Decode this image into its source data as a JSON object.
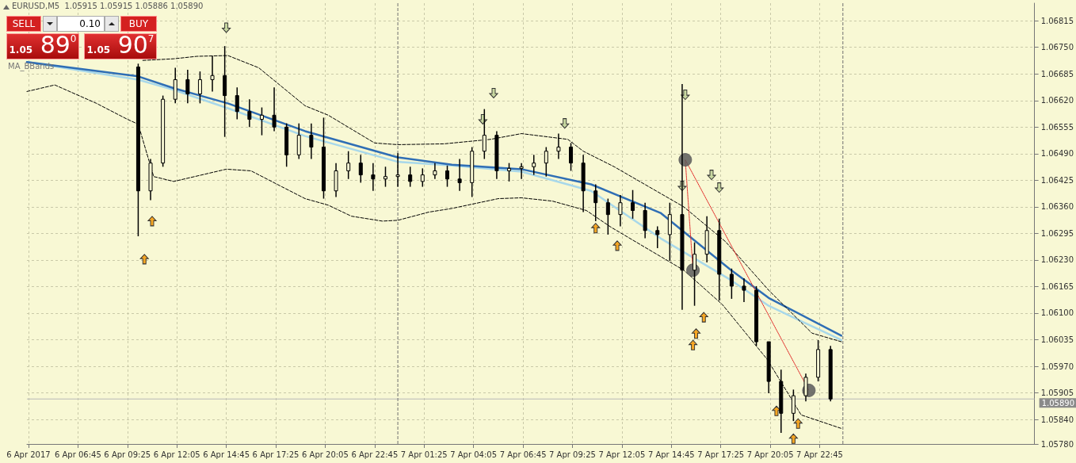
{
  "chart_data": {
    "type": "candlestick",
    "title": "EURUSD,M5  1.05915 1.05915 1.05886 1.05890",
    "subtitle": "MA_BBands",
    "annotations": [
      "SELL",
      "0.10",
      "BUY",
      "1.05 89$^{0}$",
      "1.05 90$^{7}$"
    ],
    "color": "#000000",
    "x": [
      "2017-04-06T10:00",
      "2017-04-06T10:40",
      "2017-04-06T11:20",
      "2017-04-06T12:00",
      "2017-04-06T12:40",
      "2017-04-06T13:20",
      "2017-04-06T14:00",
      "2017-04-06T14:40",
      "2017-04-06T15:20",
      "2017-04-06T16:00",
      "2017-04-06T16:40",
      "2017-04-06T17:20",
      "2017-04-06T18:00",
      "2017-04-06T18:40",
      "2017-04-06T19:20",
      "2017-04-06T20:00",
      "2017-04-06T20:40",
      "2017-04-06T21:20",
      "2017-04-06T22:00",
      "2017-04-06T22:40",
      "2017-04-06T23:20",
      "2017-04-07T00:00",
      "2017-04-07T00:40",
      "2017-04-07T01:20",
      "2017-04-07T02:00",
      "2017-04-07T02:40",
      "2017-04-07T03:20",
      "2017-04-07T04:00",
      "2017-04-07T04:40",
      "2017-04-07T05:20",
      "2017-04-07T06:00",
      "2017-04-07T06:40",
      "2017-04-07T07:20",
      "2017-04-07T08:00",
      "2017-04-07T08:40",
      "2017-04-07T09:20",
      "2017-04-07T10:00",
      "2017-04-07T10:40",
      "2017-04-07T11:20",
      "2017-04-07T12:00",
      "2017-04-07T12:40",
      "2017-04-07T13:20",
      "2017-04-07T14:00",
      "2017-04-07T14:40",
      "2017-04-07T15:20",
      "2017-04-07T16:00",
      "2017-04-07T16:40",
      "2017-04-07T17:20",
      "2017-04-07T18:00",
      "2017-04-07T18:40",
      "2017-04-07T19:20",
      "2017-04-07T20:00",
      "2017-04-07T20:40",
      "2017-04-07T21:20",
      "2017-04-07T22:00",
      "2017-04-07T22:40",
      "2017-04-07T23:20"
    ],
    "ohlc": [
      [
        1.06702,
        1.0671,
        1.06288,
        1.06399
      ],
      [
        1.06399,
        1.06477,
        1.06376,
        1.06467
      ],
      [
        1.06467,
        1.06632,
        1.06458,
        1.06623
      ],
      [
        1.06623,
        1.067,
        1.06613,
        1.06671
      ],
      [
        1.06671,
        1.06695,
        1.06613,
        1.06636
      ],
      [
        1.06636,
        1.06691,
        1.06613,
        1.06671
      ],
      [
        1.06671,
        1.06729,
        1.06642,
        1.06681
      ],
      [
        1.06681,
        1.06753,
        1.06531,
        1.06632
      ],
      [
        1.06632,
        1.06652,
        1.06574,
        1.06593
      ],
      [
        1.06593,
        1.06623,
        1.06555,
        1.06574
      ],
      [
        1.06574,
        1.06603,
        1.06535,
        1.06584
      ],
      [
        1.06584,
        1.06652,
        1.06545,
        1.06555
      ],
      [
        1.06555,
        1.06564,
        1.06458,
        1.06487
      ],
      [
        1.06487,
        1.06564,
        1.06477,
        1.06535
      ],
      [
        1.06535,
        1.06564,
        1.06477,
        1.06506
      ],
      [
        1.06506,
        1.06578,
        1.0638,
        1.06399
      ],
      [
        1.06399,
        1.06467,
        1.06384,
        1.06448
      ],
      [
        1.06448,
        1.06496,
        1.06428,
        1.06467
      ],
      [
        1.06467,
        1.06487,
        1.06419,
        1.06438
      ],
      [
        1.06438,
        1.06467,
        1.06399,
        1.06428
      ],
      [
        1.06428,
        1.06458,
        1.06409,
        1.06434
      ],
      [
        1.06434,
        1.06491,
        1.06409,
        1.06438
      ],
      [
        1.06438,
        1.06458,
        1.06409,
        1.06422
      ],
      [
        1.06422,
        1.06454,
        1.06409,
        1.06438
      ],
      [
        1.06438,
        1.06467,
        1.06428,
        1.06448
      ],
      [
        1.06448,
        1.06461,
        1.06409,
        1.06428
      ],
      [
        1.06428,
        1.06477,
        1.06399,
        1.06419
      ],
      [
        1.06419,
        1.06506,
        1.06384,
        1.06496
      ],
      [
        1.06496,
        1.06599,
        1.06477,
        1.06535
      ],
      [
        1.06535,
        1.06545,
        1.06428,
        1.06448
      ],
      [
        1.06448,
        1.06467,
        1.06422,
        1.06454
      ],
      [
        1.06454,
        1.06467,
        1.06428,
        1.06458
      ],
      [
        1.06458,
        1.06487,
        1.06438,
        1.06467
      ],
      [
        1.06467,
        1.06506,
        1.06434,
        1.06496
      ],
      [
        1.06496,
        1.06539,
        1.06477,
        1.06506
      ],
      [
        1.06506,
        1.06516,
        1.06448,
        1.06467
      ],
      [
        1.06467,
        1.06487,
        1.06347,
        1.06399
      ],
      [
        1.06399,
        1.06415,
        1.06325,
        1.0637
      ],
      [
        1.0637,
        1.0638,
        1.06292,
        1.06341
      ],
      [
        1.06341,
        1.06389,
        1.06312,
        1.0637
      ],
      [
        1.0637,
        1.06401,
        1.06331,
        1.06351
      ],
      [
        1.06351,
        1.0637,
        1.06283,
        1.06302
      ],
      [
        1.06302,
        1.06312,
        1.06259,
        1.06292
      ],
      [
        1.06292,
        1.0637,
        1.06228,
        1.06341
      ],
      [
        1.06341,
        1.0666,
        1.06108,
        1.06205
      ],
      [
        1.06205,
        1.06273,
        1.06118,
        1.06244
      ],
      [
        1.06244,
        1.06337,
        1.06224,
        1.06302
      ],
      [
        1.06302,
        1.06331,
        1.06131,
        1.06195
      ],
      [
        1.06195,
        1.06209,
        1.06135,
        1.06166
      ],
      [
        1.06166,
        1.06185,
        1.06127,
        1.06156
      ],
      [
        1.06156,
        1.06166,
        1.0602,
        1.0603
      ],
      [
        1.0603,
        1.0603,
        1.05904,
        1.05933
      ],
      [
        1.05933,
        1.05962,
        1.05807,
        1.05855
      ],
      [
        1.05855,
        1.05913,
        1.05836,
        1.05898
      ],
      [
        1.05898,
        1.05952,
        1.05884,
        1.05943
      ],
      [
        1.05943,
        1.06034,
        1.05933,
        1.06011
      ],
      [
        1.06011,
        1.0602,
        1.05884,
        1.0589
      ]
    ],
    "series": [
      {
        "type": "line",
        "color": "#a8d8ea",
        "marker": "none",
        "x": [
          "2017-04-06T04:00",
          "2017-04-06T10:00",
          "2017-04-06T11:55",
          "2017-04-06T14:50",
          "2017-04-06T19:00",
          "2017-04-07T00:00",
          "2017-04-07T02:55",
          "2017-04-07T06:40",
          "2017-04-07T10:25",
          "2017-04-07T14:10",
          "2017-04-07T17:55",
          "2017-04-07T20:00",
          "2017-04-07T23:55"
        ],
        "values": [
          1.06714,
          1.06671,
          1.06646,
          1.06601,
          1.06533,
          1.0647,
          1.06461,
          1.06446,
          1.06399,
          1.06283,
          1.06182,
          1.06118,
          1.06034
        ]
      },
      {
        "type": "line",
        "color": "#2f6eb5",
        "marker": "none",
        "x": [
          "2017-04-06T04:00",
          "2017-04-06T10:00",
          "2017-04-06T11:55",
          "2017-04-06T14:50",
          "2017-04-06T19:00",
          "2017-04-07T00:00",
          "2017-04-07T02:55",
          "2017-04-07T06:40",
          "2017-04-07T10:25",
          "2017-04-07T14:10",
          "2017-04-07T17:55",
          "2017-04-07T20:00",
          "2017-04-07T23:55"
        ],
        "values": [
          1.06714,
          1.06679,
          1.0665,
          1.06613,
          1.06545,
          1.06481,
          1.06463,
          1.06452,
          1.06415,
          1.06345,
          1.06207,
          1.06137,
          1.06045
        ]
      },
      {
        "type": "line",
        "color": "#000000",
        "marker": "none",
        "line_style": "dashed",
        "x": [
          "2017-04-06T10:15",
          "2017-04-06T11:55",
          "2017-04-06T13:10",
          "2017-04-06T14:50",
          "2017-04-06T16:30",
          "2017-04-06T19:00",
          "2017-04-06T20:15",
          "2017-04-06T22:45",
          "2017-04-07T00:00",
          "2017-04-07T02:30",
          "2017-04-07T05:00",
          "2017-04-07T06:40",
          "2017-04-07T09:10",
          "2017-04-07T10:00",
          "2017-04-07T11:40",
          "2017-04-07T15:25",
          "2017-04-07T17:40",
          "2017-04-07T20:00",
          "2017-04-07T22:20",
          "2017-04-07T23:55"
        ],
        "values": [
          1.06718,
          1.06722,
          1.06728,
          1.0673,
          1.067,
          1.06607,
          1.06584,
          1.06516,
          1.06512,
          1.06514,
          1.06525,
          1.06539,
          1.06525,
          1.06496,
          1.06458,
          1.0636,
          1.06275,
          1.06156,
          1.06051,
          1.0603
        ]
      },
      {
        "type": "line",
        "color": "#000000",
        "marker": "none",
        "line_style": "dashed",
        "x": [
          "2017-04-06T04:00",
          "2017-04-06T05:30",
          "2017-04-06T07:45",
          "2017-04-06T09:25",
          "2017-04-06T10:00",
          "2017-04-06T10:50",
          "2017-04-06T11:55",
          "2017-04-06T14:45",
          "2017-04-06T16:05",
          "2017-04-06T17:45",
          "2017-04-06T19:00",
          "2017-04-06T20:15",
          "2017-04-06T21:30",
          "2017-04-06T23:10",
          "2017-04-07T00:00",
          "2017-04-07T01:40",
          "2017-04-07T02:55",
          "2017-04-07T05:25",
          "2017-04-07T06:40",
          "2017-04-07T08:20",
          "2017-04-07T10:10",
          "2017-04-07T11:30",
          "2017-04-07T15:25",
          "2017-04-07T17:30",
          "2017-04-07T19:55",
          "2017-04-07T21:45",
          "2017-04-07T23:55"
        ],
        "values": [
          1.06642,
          1.06658,
          1.06613,
          1.06574,
          1.06562,
          1.06434,
          1.06422,
          1.06452,
          1.06448,
          1.06409,
          1.0638,
          1.06364,
          1.06337,
          1.06325,
          1.06327,
          1.06347,
          1.06356,
          1.0638,
          1.06382,
          1.06374,
          1.06351,
          1.0631,
          1.06205,
          1.06121,
          1.05987,
          1.05851,
          1.05818
        ]
      },
      {
        "type": "line",
        "color": "#e02020",
        "marker": "none",
        "line_style": "dotted",
        "x": [
          "2017-04-07T15:55",
          "2017-04-07T15:30",
          "2017-04-07T22:10"
        ],
        "values": [
          1.06205,
          1.06475,
          1.05911
        ]
      },
      {
        "type": "scatter",
        "color": "#5a5a5a",
        "marker": "circle",
        "x": [
          "2017-04-07T15:30",
          "2017-04-07T15:55",
          "2017-04-07T22:10"
        ],
        "values": [
          1.06475,
          1.06205,
          1.05911
        ]
      },
      {
        "type": "scatter",
        "color": "#f5a623",
        "marker": "triangle",
        "x": [
          "2017-04-06T10:20",
          "2017-04-06T10:45",
          "2017-04-07T10:40",
          "2017-04-07T11:50",
          "2017-04-07T15:55",
          "2017-04-07T16:05",
          "2017-04-07T16:30",
          "2017-04-07T20:25",
          "2017-04-07T21:35",
          "2017-04-07T21:20"
        ],
        "values": [
          1.06232,
          1.06325,
          1.06308,
          1.06265,
          1.06022,
          1.0605,
          1.0609,
          1.05861,
          1.0583,
          1.05793
        ]
      },
      {
        "type": "scatter",
        "color": "#c8d8a0",
        "marker": "triangle-down",
        "x": [
          "2017-04-06T14:45",
          "2017-04-07T04:35",
          "2017-04-07T05:10",
          "2017-04-07T09:00",
          "2017-04-07T15:20",
          "2017-04-07T15:30",
          "2017-04-07T16:55",
          "2017-04-07T17:20"
        ],
        "values": [
          1.06798,
          1.06574,
          1.06638,
          1.06564,
          1.06411,
          1.06634,
          1.06438,
          1.06407
        ]
      }
    ],
    "xlim": [
      "2017-04-06T04:00",
      "2017-04-08T10:20"
    ],
    "xticks": [
      {
        "value": "2017-04-06T04:05",
        "label": "6 Apr 2017"
      },
      {
        "value": "2017-04-06T06:45",
        "label": "6 Apr 06:45"
      },
      {
        "value": "2017-04-06T09:25",
        "label": "6 Apr 09:25"
      },
      {
        "value": "2017-04-06T12:05",
        "label": "6 Apr 12:05"
      },
      {
        "value": "2017-04-06T14:45",
        "label": "6 Apr 14:45"
      },
      {
        "value": "2017-04-06T17:25",
        "label": "6 Apr 17:25"
      },
      {
        "value": "2017-04-06T20:05",
        "label": "6 Apr 20:05"
      },
      {
        "value": "2017-04-06T22:45",
        "label": "6 Apr 22:45"
      },
      {
        "value": "2017-04-07T01:25",
        "label": "7 Apr 01:25"
      },
      {
        "value": "2017-04-07T04:05",
        "label": "7 Apr 04:05"
      },
      {
        "value": "2017-04-07T06:45",
        "label": "7 Apr 06:45"
      },
      {
        "value": "2017-04-07T09:25",
        "label": "7 Apr 09:25"
      },
      {
        "value": "2017-04-07T12:05",
        "label": "7 Apr 12:05"
      },
      {
        "value": "2017-04-07T14:45",
        "label": "7 Apr 14:45"
      },
      {
        "value": "2017-04-07T17:25",
        "label": "7 Apr 17:25"
      },
      {
        "value": "2017-04-07T20:05",
        "label": "7 Apr 20:05"
      },
      {
        "value": "2017-04-07T22:45",
        "label": "7 Apr 22:45"
      }
    ],
    "ylim": [
      1.0578,
      1.06858
    ],
    "yticks": [
      {
        "value": 1.0578,
        "label": "1.05780"
      },
      {
        "value": 1.0584,
        "label": "1.05840"
      },
      {
        "value": 1.05905,
        "label": "1.05905"
      },
      {
        "value": 1.0597,
        "label": "1.05970"
      },
      {
        "value": 1.06035,
        "label": "1.06035"
      },
      {
        "value": 1.061,
        "label": "1.06100"
      },
      {
        "value": 1.06165,
        "label": "1.06165"
      },
      {
        "value": 1.0623,
        "label": "1.06230"
      },
      {
        "value": 1.06295,
        "label": "1.06295"
      },
      {
        "value": 1.0636,
        "label": "1.06360"
      },
      {
        "value": 1.06425,
        "label": "1.06425"
      },
      {
        "value": 1.0649,
        "label": "1.06490"
      },
      {
        "value": 1.06555,
        "label": "1.06555"
      },
      {
        "value": 1.0662,
        "label": "1.06620"
      },
      {
        "value": 1.06685,
        "label": "1.06685"
      },
      {
        "value": 1.0675,
        "label": "1.06750"
      },
      {
        "value": 1.06815,
        "label": "1.06815"
      }
    ],
    "grid": true,
    "ref_lines": [
      {
        "axis": "y",
        "value": 1.0589,
        "label": "1.05890",
        "color": "#b8b8b8"
      },
      {
        "axis": "x",
        "value": "2017-04-07T00:00",
        "label": null,
        "color": "#707070",
        "line_style": "dashed"
      },
      {
        "axis": "x",
        "value": "2017-04-08T00:00",
        "label": null,
        "color": "#707070",
        "line_style": "dashed"
      }
    ]
  }
}
